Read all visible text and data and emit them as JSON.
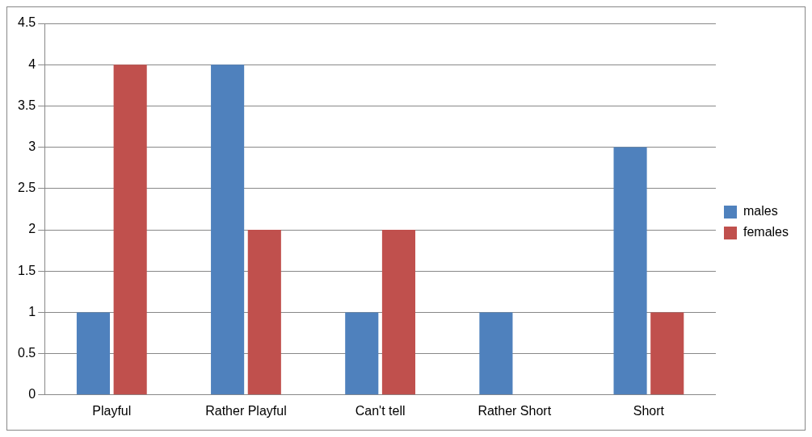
{
  "chart_data": {
    "type": "bar",
    "categories": [
      "Playful",
      "Rather Playful",
      "Can't tell",
      "Rather Short",
      "Short"
    ],
    "series": [
      {
        "name": "males",
        "color": "#4f81bd",
        "values": [
          1,
          4,
          1,
          1,
          3
        ]
      },
      {
        "name": "females",
        "color": "#c0504d",
        "values": [
          4,
          2,
          2,
          0,
          1
        ]
      }
    ],
    "ylim": [
      0,
      4.5
    ],
    "yticks": [
      0,
      0.5,
      1,
      1.5,
      2,
      2.5,
      3,
      3.5,
      4,
      4.5
    ],
    "grid": "y",
    "legend": "right"
  }
}
